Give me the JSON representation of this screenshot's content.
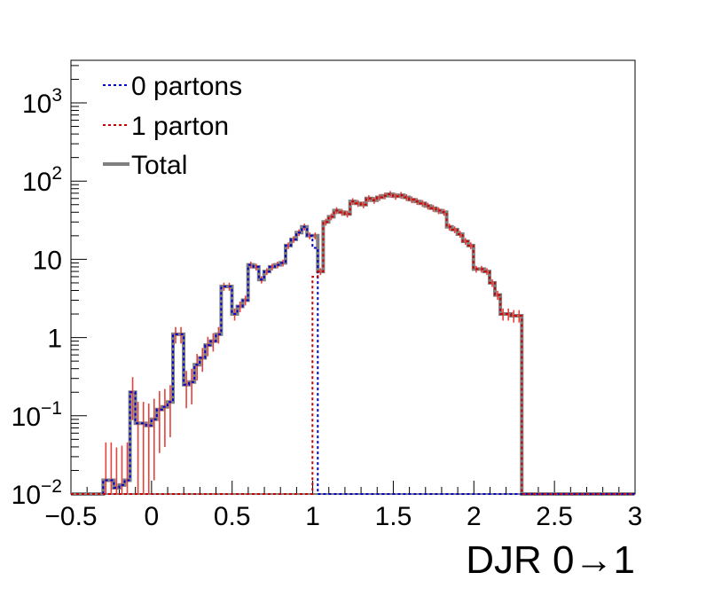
{
  "chart_data": {
    "type": "line",
    "title": "",
    "xlabel": "DJR 0→1",
    "ylabel": "",
    "xlim": [
      -0.5,
      3
    ],
    "ylim": [
      0.01,
      3500
    ],
    "ylog": true,
    "grid": false,
    "legend_placement": "top-left",
    "x_ticks": [
      {
        "value": -0.5,
        "label": "−0.5"
      },
      {
        "value": 0,
        "label": "0"
      },
      {
        "value": 0.5,
        "label": "0.5"
      },
      {
        "value": 1,
        "label": "1"
      },
      {
        "value": 1.5,
        "label": "1.5"
      },
      {
        "value": 2,
        "label": "2"
      },
      {
        "value": 2.5,
        "label": "2.5"
      },
      {
        "value": 3,
        "label": "3"
      }
    ],
    "y_ticks": [
      {
        "value": 0.01,
        "base": "10",
        "exp": "−2"
      },
      {
        "value": 0.1,
        "base": "10",
        "exp": "−1"
      },
      {
        "value": 1,
        "base": "1",
        "exp": ""
      },
      {
        "value": 10,
        "base": "10",
        "exp": ""
      },
      {
        "value": 100,
        "base": "10",
        "exp": "2"
      },
      {
        "value": 1000,
        "base": "10",
        "exp": "3"
      }
    ],
    "bin_edges_start": -0.5,
    "bin_width": 0.0333,
    "series": [
      {
        "name": "0 partons",
        "color": "#0000cc",
        "values": [
          0,
          0,
          0,
          0,
          0,
          0,
          0.015,
          0.015,
          0.012,
          0.013,
          0.015,
          0.2,
          0.08,
          0.08,
          0.075,
          0.09,
          0.12,
          0.13,
          0.15,
          1.1,
          1.1,
          0.25,
          0.27,
          0.45,
          0.55,
          0.8,
          0.9,
          1.1,
          4.5,
          4.5,
          2.0,
          2.5,
          3.0,
          8.5,
          8.0,
          5.5,
          7.0,
          8.0,
          8.5,
          9.0,
          15,
          18,
          22,
          26,
          20,
          14,
          0,
          0,
          0,
          0,
          0,
          0,
          0,
          0,
          0,
          0,
          0,
          0,
          0,
          0,
          0,
          0,
          0,
          0,
          0,
          0,
          0,
          0,
          0,
          0,
          0,
          0,
          0,
          0,
          0,
          0,
          0,
          0,
          0,
          0,
          0,
          0,
          0,
          0,
          0,
          0,
          0,
          0,
          0,
          0,
          0,
          0,
          0,
          0,
          0,
          0,
          0,
          0,
          0,
          0,
          0,
          0,
          0,
          0,
          0
        ]
      },
      {
        "name": "1 parton",
        "color": "#cc0000",
        "values": [
          0,
          0,
          0,
          0,
          0,
          0,
          0,
          0,
          0,
          0,
          0,
          0,
          0,
          0,
          0,
          0,
          0,
          0,
          0,
          0,
          0,
          0,
          0,
          0,
          0,
          0,
          0,
          0,
          0,
          0,
          0,
          0,
          0,
          0,
          0,
          0,
          0,
          0,
          0,
          0,
          0,
          0,
          0,
          0,
          0,
          6.0,
          7.0,
          30,
          35,
          42,
          40,
          38,
          55,
          52,
          50,
          60,
          57,
          62,
          65,
          68,
          64,
          66,
          62,
          58,
          55,
          52,
          48,
          45,
          42,
          40,
          26,
          24,
          21,
          17,
          15,
          7.5,
          7.5,
          7.0,
          5.0,
          3.5,
          2.0,
          2.0,
          1.9,
          1.9,
          0,
          0,
          0,
          0,
          0,
          0,
          0,
          0,
          0,
          0,
          0,
          0,
          0,
          0,
          0,
          0,
          0,
          0,
          0,
          0,
          0
        ]
      },
      {
        "name": "Total",
        "color": "#808080",
        "values": [
          0,
          0,
          0,
          0,
          0,
          0,
          0.015,
          0.015,
          0.012,
          0.013,
          0.015,
          0.2,
          0.08,
          0.08,
          0.075,
          0.09,
          0.12,
          0.13,
          0.15,
          1.1,
          1.1,
          0.25,
          0.27,
          0.45,
          0.55,
          0.8,
          0.9,
          1.1,
          4.5,
          4.5,
          2.0,
          2.5,
          3.0,
          8.5,
          8.0,
          5.5,
          7.0,
          8.0,
          8.5,
          9.0,
          15,
          18,
          22,
          26,
          20,
          20,
          7.0,
          30,
          35,
          42,
          40,
          38,
          55,
          52,
          50,
          60,
          57,
          62,
          65,
          68,
          64,
          66,
          62,
          58,
          55,
          52,
          48,
          45,
          42,
          40,
          26,
          24,
          21,
          17,
          15,
          7.5,
          7.5,
          7.0,
          5.0,
          3.5,
          2.0,
          2.0,
          1.9,
          1.9,
          0,
          0,
          0,
          0,
          0,
          0,
          0,
          0,
          0,
          0,
          0,
          0,
          0,
          0,
          0,
          0,
          0,
          0,
          0,
          0,
          0
        ]
      }
    ]
  }
}
